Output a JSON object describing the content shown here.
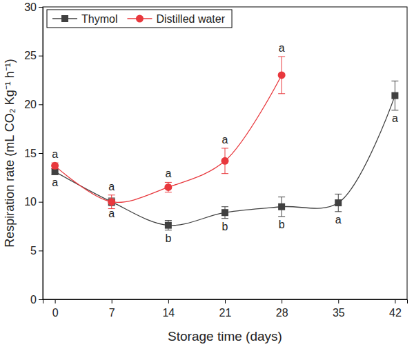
{
  "chart_data": {
    "type": "line",
    "x_label": "Storage time (days)",
    "y_label": "Respiration rate (mL CO₂ Kg⁻¹ h⁻¹)",
    "x": [
      0,
      7,
      14,
      21,
      28,
      35,
      42
    ],
    "series": [
      {
        "name": "Thymol",
        "color": "#404040",
        "marker": "square",
        "line_style": "solid",
        "values": [
          13.1,
          10.0,
          7.6,
          8.9,
          9.5,
          9.9,
          20.9
        ],
        "errors": [
          0.3,
          0.4,
          0.5,
          0.6,
          1.0,
          0.9,
          1.5
        ],
        "letters": [
          "a",
          "a",
          "b",
          "b",
          "b",
          "a",
          "a"
        ]
      },
      {
        "name": "Distilled water",
        "color": "#e8383d",
        "marker": "circle",
        "line_style": "solid",
        "values": [
          13.7,
          10.0,
          11.5,
          14.2,
          23.0,
          null,
          null
        ],
        "errors": [
          0.3,
          0.7,
          0.5,
          1.3,
          1.9,
          null,
          null
        ],
        "letters": [
          "a",
          "a",
          "a",
          "a",
          "a",
          null,
          null
        ]
      }
    ],
    "xlim": [
      -1.5,
      43.5
    ],
    "xticks": [
      0,
      7,
      14,
      21,
      28,
      35,
      42
    ],
    "ylim": [
      0,
      30
    ],
    "yticks": [
      0,
      5,
      10,
      15,
      20,
      25,
      30
    ],
    "grid": false,
    "legend": "top-left"
  }
}
